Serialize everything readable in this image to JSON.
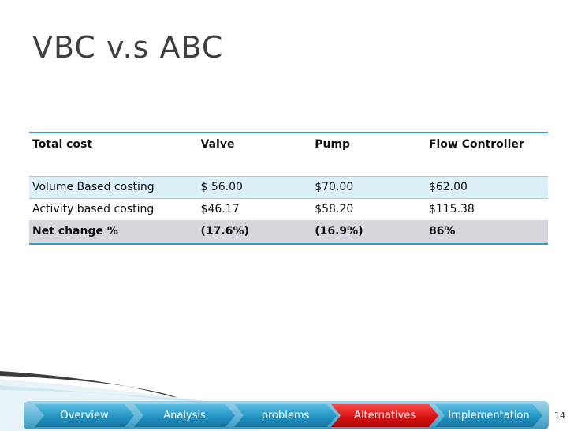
{
  "slide": {
    "title": "VBC v.s ABC",
    "page_number": "14"
  },
  "table": {
    "header": [
      "Total cost",
      "Valve",
      "Pump",
      "Flow Controller"
    ],
    "rows": [
      [
        "Volume Based costing",
        "$ 56.00",
        "$70.00",
        "$62.00"
      ],
      [
        "Activity based costing",
        "$46.17",
        "$58.20",
        "$115.38"
      ]
    ],
    "net_row": [
      "Net change %",
      "(17.6%)",
      "(16.9%)",
      "86%"
    ]
  },
  "nav": {
    "tabs": [
      "Overview",
      "Analysis",
      "problems",
      "Alternatives",
      "Implementation"
    ],
    "active_tab": "Alternatives"
  },
  "colors": {
    "accent": "#2f9fc4",
    "row_highlight": "#dcf0f7",
    "net_row": "#d7d7dd",
    "active_tab": "#d60f0f",
    "tab": "#1f8fc0"
  }
}
